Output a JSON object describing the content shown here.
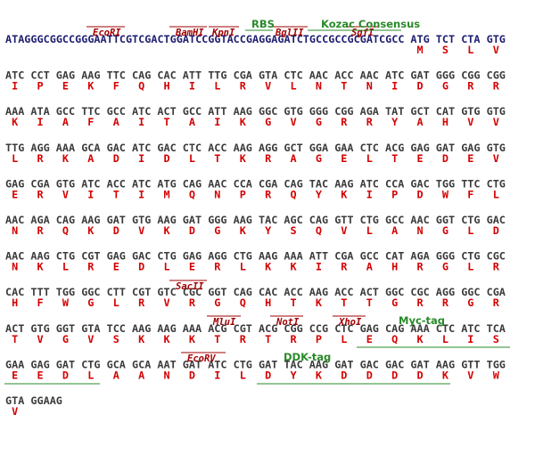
{
  "rows": [
    {
      "leader": "ATAGGGCGGCCGGGAATTCGTCGACTGGATCCGGTACCGAGGAGATCTGCCGCCGCGATCGCC",
      "codons": [
        "ATG",
        "TCT",
        "CTA",
        "GTG"
      ],
      "aa": [
        "M",
        "S",
        "L",
        "V"
      ]
    },
    {
      "codons": [
        "ATC",
        "CCT",
        "GAG",
        "AAG",
        "TTC",
        "CAG",
        "CAC",
        "ATT",
        "TTG",
        "CGA",
        "GTA",
        "CTC",
        "AAC",
        "ACC",
        "AAC",
        "ATC",
        "GAT",
        "GGG",
        "CGG",
        "CGG"
      ],
      "aa": [
        "I",
        "P",
        "E",
        "K",
        "F",
        "Q",
        "H",
        "I",
        "L",
        "R",
        "V",
        "L",
        "N",
        "T",
        "N",
        "I",
        "D",
        "G",
        "R",
        "R"
      ]
    },
    {
      "codons": [
        "AAA",
        "ATA",
        "GCC",
        "TTC",
        "GCC",
        "ATC",
        "ACT",
        "GCC",
        "ATT",
        "AAG",
        "GGC",
        "GTG",
        "GGG",
        "CGG",
        "AGA",
        "TAT",
        "GCT",
        "CAT",
        "GTG",
        "GTG"
      ],
      "aa": [
        "K",
        "I",
        "A",
        "F",
        "A",
        "I",
        "T",
        "A",
        "I",
        "K",
        "G",
        "V",
        "G",
        "R",
        "R",
        "Y",
        "A",
        "H",
        "V",
        "V"
      ]
    },
    {
      "codons": [
        "TTG",
        "AGG",
        "AAA",
        "GCA",
        "GAC",
        "ATC",
        "GAC",
        "CTC",
        "ACC",
        "AAG",
        "AGG",
        "GCT",
        "GGA",
        "GAA",
        "CTC",
        "ACG",
        "GAG",
        "GAT",
        "GAG",
        "GTG"
      ],
      "aa": [
        "L",
        "R",
        "K",
        "A",
        "D",
        "I",
        "D",
        "L",
        "T",
        "K",
        "R",
        "A",
        "G",
        "E",
        "L",
        "T",
        "E",
        "D",
        "E",
        "V"
      ]
    },
    {
      "codons": [
        "GAG",
        "CGA",
        "GTG",
        "ATC",
        "ACC",
        "ATC",
        "ATG",
        "CAG",
        "AAC",
        "CCA",
        "CGA",
        "CAG",
        "TAC",
        "AAG",
        "ATC",
        "CCA",
        "GAC",
        "TGG",
        "TTC",
        "CTG"
      ],
      "aa": [
        "E",
        "R",
        "V",
        "I",
        "T",
        "I",
        "M",
        "Q",
        "N",
        "P",
        "R",
        "Q",
        "Y",
        "K",
        "I",
        "P",
        "D",
        "W",
        "F",
        "L"
      ]
    },
    {
      "codons": [
        "AAC",
        "AGA",
        "CAG",
        "AAG",
        "GAT",
        "GTG",
        "AAG",
        "GAT",
        "GGG",
        "AAG",
        "TAC",
        "AGC",
        "CAG",
        "GTT",
        "CTG",
        "GCC",
        "AAC",
        "GGT",
        "CTG",
        "GAC"
      ],
      "aa": [
        "N",
        "R",
        "Q",
        "K",
        "D",
        "V",
        "K",
        "D",
        "G",
        "K",
        "Y",
        "S",
        "Q",
        "V",
        "L",
        "A",
        "N",
        "G",
        "L",
        "D"
      ]
    },
    {
      "codons": [
        "AAC",
        "AAG",
        "CTG",
        "CGT",
        "GAG",
        "GAC",
        "CTG",
        "GAG",
        "AGG",
        "CTG",
        "AAG",
        "AAA",
        "ATT",
        "CGA",
        "GCC",
        "CAT",
        "AGA",
        "GGG",
        "CTG",
        "CGC"
      ],
      "aa": [
        "N",
        "K",
        "L",
        "R",
        "E",
        "D",
        "L",
        "E",
        "R",
        "L",
        "K",
        "K",
        "I",
        "R",
        "A",
        "H",
        "R",
        "G",
        "L",
        "R"
      ]
    },
    {
      "codons": [
        "CAC",
        "TTT",
        "TGG",
        "GGC",
        "CTT",
        "CGT",
        "GTC",
        "CGC",
        "GGT",
        "CAG",
        "CAC",
        "ACC",
        "AAG",
        "ACC",
        "ACT",
        "GGC",
        "CGC",
        "AGG",
        "GGC",
        "CGA"
      ],
      "aa": [
        "H",
        "F",
        "W",
        "G",
        "L",
        "R",
        "V",
        "R",
        "G",
        "Q",
        "H",
        "T",
        "K",
        "T",
        "T",
        "G",
        "R",
        "R",
        "G",
        "R"
      ]
    },
    {
      "codons": [
        "ACT",
        "GTG",
        "GGT",
        "GTA",
        "TCC",
        "AAG",
        "AAG",
        "AAA",
        "ACG",
        "CGT",
        "ACG",
        "CGG",
        "CCG",
        "CTC",
        "GAG",
        "CAG",
        "AAA",
        "CTC",
        "ATC",
        "TCA"
      ],
      "aa": [
        "T",
        "V",
        "G",
        "V",
        "S",
        "K",
        "K",
        "K",
        "T",
        "R",
        "T",
        "R",
        "P",
        "L",
        "E",
        "Q",
        "K",
        "L",
        "I",
        "S"
      ]
    },
    {
      "codons": [
        "GAA",
        "GAG",
        "GAT",
        "CTG",
        "GCA",
        "GCA",
        "AAT",
        "GAT",
        "ATC",
        "CTG",
        "GAT",
        "TAC",
        "AAG",
        "GAT",
        "GAC",
        "GAC",
        "GAT",
        "AAG",
        "GTT",
        "TGG"
      ],
      "aa": [
        "E",
        "E",
        "D",
        "L",
        "A",
        "A",
        "N",
        "D",
        "I",
        "L",
        "D",
        "Y",
        "K",
        "D",
        "D",
        "D",
        "D",
        "K",
        "V",
        "W"
      ]
    },
    {
      "codons": [
        "GTA",
        "GGAAG"
      ],
      "aa": [
        "V"
      ]
    }
  ],
  "sites": [
    "EcoRI",
    "BamHI",
    "KpnI",
    "BglII",
    "SgfI",
    "SacII",
    "MluI",
    "NotI",
    "XhoI",
    "EcoRV"
  ],
  "features": [
    "RBS",
    "Kozac Consensus",
    "Myc-tag",
    "DDK-tag"
  ]
}
